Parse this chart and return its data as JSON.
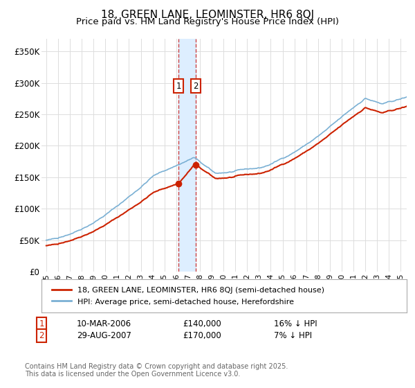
{
  "title": "18, GREEN LANE, LEOMINSTER, HR6 8QJ",
  "subtitle": "Price paid vs. HM Land Registry's House Price Index (HPI)",
  "title_fontsize": 11,
  "subtitle_fontsize": 9.5,
  "ylabel_ticks": [
    "£0",
    "£50K",
    "£100K",
    "£150K",
    "£200K",
    "£250K",
    "£300K",
    "£350K"
  ],
  "ytick_values": [
    0,
    50000,
    100000,
    150000,
    200000,
    250000,
    300000,
    350000
  ],
  "ylim": [
    0,
    370000
  ],
  "xlim_start": 1994.6,
  "xlim_end": 2025.5,
  "xtick_years": [
    1995,
    1996,
    1997,
    1998,
    1999,
    2000,
    2001,
    2002,
    2003,
    2004,
    2005,
    2006,
    2007,
    2008,
    2009,
    2010,
    2011,
    2012,
    2013,
    2014,
    2015,
    2016,
    2017,
    2018,
    2019,
    2020,
    2021,
    2022,
    2023,
    2024,
    2025
  ],
  "hpi_color": "#7ab0d4",
  "price_color": "#cc2200",
  "annotation_box_color": "#cc2200",
  "vline_color": "#cc4444",
  "vshade_color": "#ddeeff",
  "grid_color": "#dddddd",
  "background_color": "#ffffff",
  "sale1_year": 2006.19,
  "sale1_price": 140000,
  "sale1_date_label": "10-MAR-2006",
  "sale1_pct_label": "16% ↓ HPI",
  "sale2_year": 2007.66,
  "sale2_price": 170000,
  "sale2_date_label": "29-AUG-2007",
  "sale2_pct_label": "7% ↓ HPI",
  "legend_label1": "18, GREEN LANE, LEOMINSTER, HR6 8QJ (semi-detached house)",
  "legend_label2": "HPI: Average price, semi-detached house, Herefordshire",
  "footer": "Contains HM Land Registry data © Crown copyright and database right 2025.\nThis data is licensed under the Open Government Licence v3.0.",
  "annotation1_label": "1",
  "annotation2_label": "2"
}
